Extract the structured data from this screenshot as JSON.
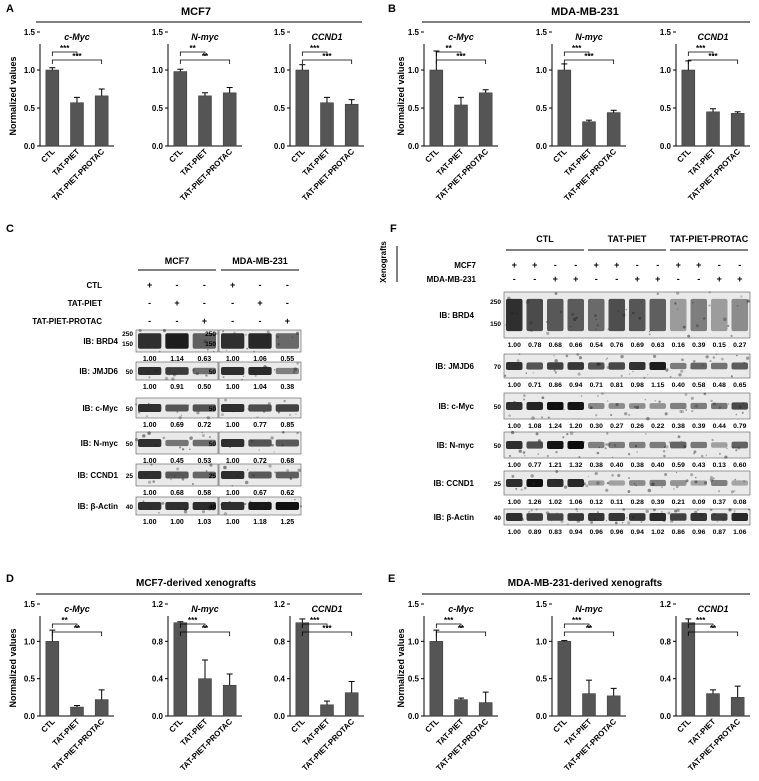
{
  "panels": {
    "A": {
      "letter": "A",
      "title": "MCF7",
      "ylabel": "Normalized values"
    },
    "B": {
      "letter": "B",
      "title": "MDA-MB-231",
      "ylabel": "Normalized values"
    },
    "C": {
      "letter": "C"
    },
    "D": {
      "letter": "D",
      "title": "MCF7-derived xenografts",
      "ylabel": "Normalized values"
    },
    "E": {
      "letter": "E",
      "title": "MDA-MB-231-derived xenografts",
      "ylabel": "Normalized values"
    },
    "F": {
      "letter": "F"
    }
  },
  "chart_data": [
    {
      "id": "A1",
      "type": "bar",
      "title": "c-Myc",
      "categories": [
        "CTL",
        "TAT-PIET",
        "TAT-PIET-PROTAC"
      ],
      "values": [
        1.0,
        0.57,
        0.66
      ],
      "errors": [
        0.03,
        0.07,
        0.09
      ],
      "yticks": [
        "0.0",
        "0.5",
        "1.0",
        "1.5"
      ],
      "ylim": [
        0,
        1.5
      ],
      "sig": [
        {
          "label": "***",
          "to": 1
        },
        {
          "label": "***",
          "to": 2
        }
      ]
    },
    {
      "id": "A2",
      "type": "bar",
      "title": "N-myc",
      "categories": [
        "CTL",
        "TAT-PIET",
        "TAT-PIET-PROTAC"
      ],
      "values": [
        0.98,
        0.66,
        0.7
      ],
      "errors": [
        0.03,
        0.04,
        0.07
      ],
      "yticks": [
        "0.0",
        "0.5",
        "1.0",
        "1.5"
      ],
      "ylim": [
        0,
        1.5
      ],
      "sig": [
        {
          "label": "**",
          "to": 1
        },
        {
          "label": "**",
          "to": 2
        }
      ]
    },
    {
      "id": "A3",
      "type": "bar",
      "title": "CCND1",
      "categories": [
        "CTL",
        "TAT-PIET",
        "TAT-PIET-PROTAC"
      ],
      "values": [
        1.0,
        0.57,
        0.55
      ],
      "errors": [
        0.07,
        0.07,
        0.06
      ],
      "yticks": [
        "0.0",
        "0.5",
        "1.0",
        "1.5"
      ],
      "ylim": [
        0,
        1.5
      ],
      "sig": [
        {
          "label": "***",
          "to": 1
        },
        {
          "label": "***",
          "to": 2
        }
      ]
    },
    {
      "id": "B1",
      "type": "bar",
      "title": "c-Myc",
      "categories": [
        "CTL",
        "TAT-PIET",
        "TAT-PIET-PROTAC"
      ],
      "values": [
        1.0,
        0.54,
        0.7
      ],
      "errors": [
        0.25,
        0.1,
        0.04
      ],
      "yticks": [
        "0.0",
        "0.5",
        "1.0",
        "1.5"
      ],
      "ylim": [
        0,
        1.5
      ],
      "sig": [
        {
          "label": "**",
          "to": 1
        },
        {
          "label": "***",
          "to": 2
        }
      ]
    },
    {
      "id": "B2",
      "type": "bar",
      "title": "N-myc",
      "categories": [
        "CTL",
        "TAT-PIET",
        "TAT-PIET-PROTAC"
      ],
      "values": [
        1.0,
        0.32,
        0.44
      ],
      "errors": [
        0.08,
        0.02,
        0.03
      ],
      "yticks": [
        "0.0",
        "0.5",
        "1.0",
        "1.5"
      ],
      "ylim": [
        0,
        1.5
      ],
      "sig": [
        {
          "label": "***",
          "to": 1
        },
        {
          "label": "***",
          "to": 2
        }
      ]
    },
    {
      "id": "B3",
      "type": "bar",
      "title": "CCND1",
      "categories": [
        "CTL",
        "TAT-PIET",
        "TAT-PIET-PROTAC"
      ],
      "values": [
        1.0,
        0.45,
        0.43
      ],
      "errors": [
        0.12,
        0.04,
        0.02
      ],
      "yticks": [
        "0.0",
        "0.5",
        "1.0",
        "1.5"
      ],
      "ylim": [
        0,
        1.5
      ],
      "sig": [
        {
          "label": "***",
          "to": 1
        },
        {
          "label": "***",
          "to": 2
        }
      ]
    },
    {
      "id": "D1",
      "type": "bar",
      "title": "c-Myc",
      "categories": [
        "CTL",
        "TAT-PIET",
        "TAT-PIET-PROTAC"
      ],
      "values": [
        1.0,
        0.12,
        0.22
      ],
      "errors": [
        0.15,
        0.02,
        0.13
      ],
      "yticks": [
        "0.0",
        "0.5",
        "1.0",
        "1.5"
      ],
      "ylim": [
        0,
        1.5
      ],
      "sig": [
        {
          "label": "**",
          "to": 1
        },
        {
          "label": "**",
          "to": 2
        }
      ]
    },
    {
      "id": "D2",
      "type": "bar",
      "title": "N-myc",
      "categories": [
        "CTL",
        "TAT-PIET",
        "TAT-PIET-PROTAC"
      ],
      "values": [
        1.0,
        0.4,
        0.33
      ],
      "errors": [
        0.01,
        0.2,
        0.12
      ],
      "yticks": [
        "0.0",
        "0.4",
        "0.8",
        "1.2"
      ],
      "ylim": [
        0,
        1.2
      ],
      "sig": [
        {
          "label": "***",
          "to": 1
        },
        {
          "label": "**",
          "to": 2
        }
      ]
    },
    {
      "id": "D3",
      "type": "bar",
      "title": "CCND1",
      "categories": [
        "CTL",
        "TAT-PIET",
        "TAT-PIET-PROTAC"
      ],
      "values": [
        1.0,
        0.12,
        0.25
      ],
      "errors": [
        0.04,
        0.04,
        0.12
      ],
      "yticks": [
        "0.0",
        "0.4",
        "0.8",
        "1.2"
      ],
      "ylim": [
        0,
        1.2
      ],
      "sig": [
        {
          "label": "***",
          "to": 1
        },
        {
          "label": "***",
          "to": 2
        }
      ]
    },
    {
      "id": "E1",
      "type": "bar",
      "title": "c-Myc",
      "categories": [
        "CTL",
        "TAT-PIET",
        "TAT-PIET-PROTAC"
      ],
      "values": [
        1.0,
        0.22,
        0.18
      ],
      "errors": [
        0.15,
        0.02,
        0.14
      ],
      "yticks": [
        "0.0",
        "0.5",
        "1.0",
        "1.5"
      ],
      "ylim": [
        0,
        1.5
      ],
      "sig": [
        {
          "label": "***",
          "to": 1
        },
        {
          "label": "**",
          "to": 2
        }
      ]
    },
    {
      "id": "E2",
      "type": "bar",
      "title": "N-myc",
      "categories": [
        "CTL",
        "TAT-PIET",
        "TAT-PIET-PROTAC"
      ],
      "values": [
        1.0,
        0.3,
        0.27
      ],
      "errors": [
        0.01,
        0.18,
        0.1
      ],
      "yticks": [
        "0.0",
        "0.5",
        "1.0",
        "1.5"
      ],
      "ylim": [
        0,
        1.5
      ],
      "sig": [
        {
          "label": "***",
          "to": 1
        },
        {
          "label": "**",
          "to": 2
        }
      ]
    },
    {
      "id": "E3",
      "type": "bar",
      "title": "CCND1",
      "categories": [
        "CTL",
        "TAT-PIET",
        "TAT-PIET-PROTAC"
      ],
      "values": [
        1.0,
        0.24,
        0.2
      ],
      "errors": [
        0.04,
        0.04,
        0.12
      ],
      "yticks": [
        "0.0",
        "0.4",
        "0.8",
        "1.2"
      ],
      "ylim": [
        0,
        1.2
      ],
      "sig": [
        {
          "label": "***",
          "to": 1
        },
        {
          "label": "**",
          "to": 2
        }
      ]
    }
  ],
  "blotC": {
    "cell_lines": [
      "MCF7",
      "MDA-MB-231"
    ],
    "treatments": [
      "CTL",
      "TAT-PIET",
      "TAT-PIET-PROTAC"
    ],
    "signs": [
      [
        "+",
        "-",
        "-"
      ],
      [
        "-",
        "+",
        "-"
      ],
      [
        "-",
        "-",
        "+"
      ]
    ],
    "rows": [
      {
        "label": "IB: BRD4",
        "markers": [
          "250",
          "150"
        ],
        "quant": [
          [
            "1.00",
            "1.14",
            "0.63"
          ],
          [
            "1.00",
            "1.06",
            "0.55"
          ]
        ]
      },
      {
        "label": "IB: JMJD6",
        "markers": [
          "50"
        ],
        "quant": [
          [
            "1.00",
            "0.91",
            "0.50"
          ],
          [
            "1.00",
            "1.04",
            "0.38"
          ]
        ]
      },
      {
        "label": "IB: c-Myc",
        "markers": [
          "50"
        ],
        "quant": [
          [
            "1.00",
            "0.69",
            "0.72"
          ],
          [
            "1.00",
            "0.77",
            "0.85"
          ]
        ]
      },
      {
        "label": "IB: N-myc",
        "markers": [
          "50"
        ],
        "quant": [
          [
            "1.00",
            "0.45",
            "0.53"
          ],
          [
            "1.00",
            "0.72",
            "0.68"
          ]
        ]
      },
      {
        "label": "IB: CCND1",
        "markers": [
          "25"
        ],
        "quant": [
          [
            "1.00",
            "0.68",
            "0.58"
          ],
          [
            "1.00",
            "0.67",
            "0.62"
          ]
        ]
      },
      {
        "label": "IB: β-Actin",
        "markers": [
          "40"
        ],
        "quant": [
          [
            "1.00",
            "1.00",
            "1.03"
          ],
          [
            "1.00",
            "1.18",
            "1.25"
          ]
        ]
      }
    ]
  },
  "blotF": {
    "side_label": "Xenografts",
    "groups": [
      "CTL",
      "TAT-PIET",
      "TAT-PIET-PROTAC"
    ],
    "row_labels": [
      "MCF7",
      "MDA-MB-231"
    ],
    "mcf7": [
      "+",
      "+",
      "-",
      "-",
      "+",
      "+",
      "-",
      "-",
      "+",
      "+",
      "-",
      "-"
    ],
    "mda": [
      "-",
      "-",
      "+",
      "+",
      "-",
      "-",
      "+",
      "+",
      "-",
      "-",
      "+",
      "+"
    ],
    "rows": [
      {
        "label": "IB: BRD4",
        "markers": [
          "250",
          "150"
        ],
        "quant": [
          "1.00",
          "0.78",
          "0.68",
          "0.66",
          "0.54",
          "0.76",
          "0.69",
          "0.63",
          "0.16",
          "0.39",
          "0.15",
          "0.27"
        ]
      },
      {
        "label": "IB: JMJD6",
        "markers": [
          "70"
        ],
        "quant": [
          "1.00",
          "0.71",
          "0.86",
          "0.94",
          "0.71",
          "0.81",
          "0.98",
          "1.15",
          "0.40",
          "0.58",
          "0.48",
          "0.65"
        ]
      },
      {
        "label": "IB: c-Myc",
        "markers": [
          "50"
        ],
        "quant": [
          "1.00",
          "1.08",
          "1.24",
          "1.20",
          "0.30",
          "0.27",
          "0.26",
          "0.22",
          "0.38",
          "0.39",
          "0.44",
          "0.79"
        ]
      },
      {
        "label": "IB: N-myc",
        "markers": [
          "50"
        ],
        "quant": [
          "1.00",
          "0.77",
          "1.21",
          "1.32",
          "0.38",
          "0.40",
          "0.38",
          "0.40",
          "0.59",
          "0.43",
          "0.13",
          "0.60"
        ]
      },
      {
        "label": "IB: CCND1",
        "markers": [
          "25"
        ],
        "quant": [
          "1.00",
          "1.26",
          "1.02",
          "1.06",
          "0.12",
          "0.11",
          "0.28",
          "0.39",
          "0.21",
          "0.09",
          "0.37",
          "0.08"
        ]
      },
      {
        "label": "IB: β-Actin",
        "markers": [
          "40"
        ],
        "quant": [
          "1.00",
          "0.89",
          "0.83",
          "0.94",
          "0.96",
          "0.96",
          "0.94",
          "1.02",
          "0.86",
          "0.96",
          "0.87",
          "1.06"
        ]
      }
    ]
  }
}
